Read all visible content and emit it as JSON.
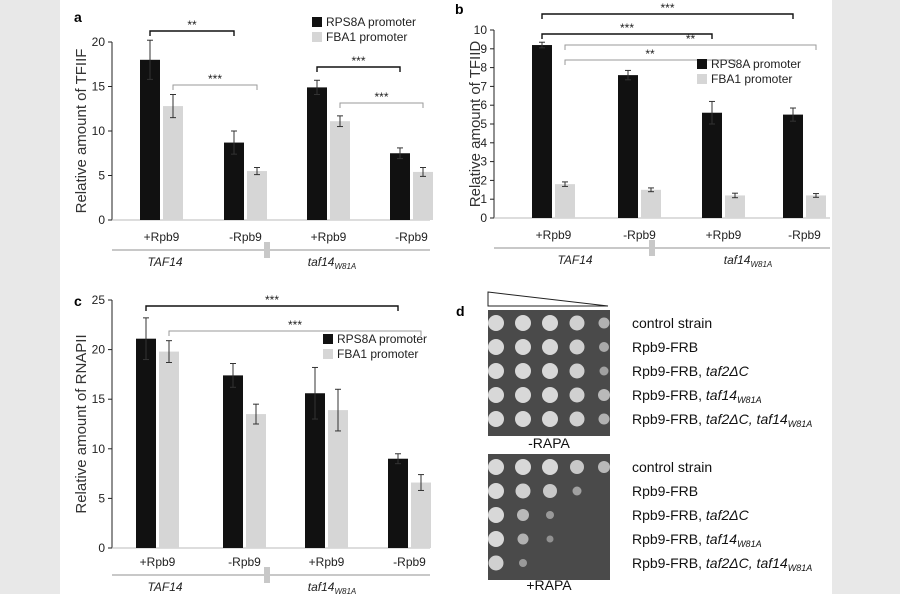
{
  "colors": {
    "rps8a": "#111111",
    "fba1": "#d6d6d6",
    "sig_black": "#111111",
    "sig_grey": "#9a9a9a",
    "group_bar": "#c8c8c8",
    "plate_bg": "#4a4a4a",
    "colony": "#d8d8d8"
  },
  "panel_a": {
    "letter": "a",
    "chart_data": {
      "type": "bar",
      "categories": [
        "+Rpb9",
        "-Rpb9",
        "+Rpb9",
        "-Rpb9"
      ],
      "groups": [
        {
          "label": "TAF14",
          "sub": ""
        },
        {
          "label": "taf14",
          "sub": "W81A"
        }
      ],
      "series": [
        {
          "name": "RPS8A promoter",
          "color": "#111111",
          "values": [
            18.0,
            8.7,
            14.9,
            7.5
          ],
          "errors": [
            2.2,
            1.3,
            0.8,
            0.6
          ]
        },
        {
          "name": "FBA1 promoter",
          "color": "#d6d6d6",
          "values": [
            12.8,
            5.5,
            11.1,
            5.4
          ],
          "errors": [
            1.3,
            0.4,
            0.6,
            0.5
          ]
        }
      ],
      "ylabel": "Relative amount of TFIIF",
      "ylim": [
        0,
        20
      ],
      "yticks": [
        0,
        5,
        10,
        15,
        20
      ],
      "significance": [
        {
          "from": 0,
          "to": 1,
          "series": 0,
          "label": "**",
          "color": "black"
        },
        {
          "from": 0,
          "to": 1,
          "series": 1,
          "label": "***",
          "color": "grey"
        },
        {
          "from": 2,
          "to": 3,
          "series": 0,
          "label": "***",
          "color": "black"
        },
        {
          "from": 2,
          "to": 3,
          "series": 1,
          "label": "***",
          "color": "grey"
        }
      ]
    }
  },
  "panel_b": {
    "letter": "b",
    "chart_data": {
      "type": "bar",
      "categories": [
        "+Rpb9",
        "-Rpb9",
        "+Rpb9",
        "-Rpb9"
      ],
      "groups": [
        {
          "label": "TAF14",
          "sub": ""
        },
        {
          "label": "taf14",
          "sub": "W81A"
        }
      ],
      "series": [
        {
          "name": "RPS8A promoter",
          "color": "#111111",
          "values": [
            9.2,
            7.6,
            5.6,
            5.5
          ],
          "errors": [
            0.15,
            0.25,
            0.6,
            0.35
          ]
        },
        {
          "name": "FBA1 promoter",
          "color": "#d6d6d6",
          "values": [
            1.8,
            1.5,
            1.2,
            1.2
          ],
          "errors": [
            0.12,
            0.1,
            0.12,
            0.1
          ]
        }
      ],
      "ylabel": "Relative amount of TFIID",
      "ylim": [
        0,
        10
      ],
      "yticks": [
        0,
        1,
        2,
        3,
        4,
        5,
        6,
        7,
        8,
        9,
        10
      ],
      "significance": [
        {
          "from": 0,
          "to": 3,
          "series": 0,
          "label": "***",
          "color": "black"
        },
        {
          "from": 0,
          "to": 2,
          "series": 0,
          "label": "***",
          "color": "black"
        },
        {
          "from": 0,
          "to": 3,
          "series": 1,
          "label": "**",
          "color": "grey"
        },
        {
          "from": 0,
          "to": 2,
          "series": 1,
          "label": "**",
          "color": "grey"
        }
      ]
    }
  },
  "panel_c": {
    "letter": "c",
    "chart_data": {
      "type": "bar",
      "categories": [
        "+Rpb9",
        "-Rpb9",
        "+Rpb9",
        "-Rpb9"
      ],
      "groups": [
        {
          "label": "TAF14",
          "sub": ""
        },
        {
          "label": "taf14",
          "sub": "W81A"
        }
      ],
      "series": [
        {
          "name": "RPS8A promoter",
          "color": "#111111",
          "values": [
            21.1,
            17.4,
            15.6,
            9.0
          ],
          "errors": [
            2.1,
            1.2,
            2.6,
            0.5
          ]
        },
        {
          "name": "FBA1 promoter",
          "color": "#d6d6d6",
          "values": [
            19.8,
            13.5,
            13.9,
            6.6
          ],
          "errors": [
            1.1,
            1.0,
            2.1,
            0.8
          ]
        }
      ],
      "ylabel": "Relative amount of RNAPII",
      "ylim": [
        0,
        25
      ],
      "yticks": [
        0,
        5,
        10,
        15,
        20,
        25
      ],
      "significance": [
        {
          "from": 0,
          "to": 3,
          "series": 0,
          "label": "***",
          "color": "black"
        },
        {
          "from": 0,
          "to": 3,
          "series": 1,
          "label": "***",
          "color": "grey"
        }
      ]
    }
  },
  "panel_d": {
    "letter": "d",
    "conditions": [
      "-RAPA",
      "+RAPA"
    ],
    "strains": [
      {
        "text": "control strain",
        "italic": "",
        "sub": ""
      },
      {
        "text": "Rpb9-FRB",
        "italic": "",
        "sub": ""
      },
      {
        "text": "Rpb9-FRB, ",
        "italic": "taf2ΔC",
        "sub": ""
      },
      {
        "text": "Rpb9-FRB, ",
        "italic": "taf14",
        "sub": "W81A"
      },
      {
        "text": "Rpb9-FRB, ",
        "italic": "taf2ΔC, taf14",
        "sub": "W81A"
      }
    ],
    "growth_minus": [
      [
        1,
        1,
        1,
        0.9,
        0.5
      ],
      [
        1,
        1,
        1,
        0.9,
        0.4
      ],
      [
        1,
        1,
        1,
        0.9,
        0.3
      ],
      [
        1,
        1,
        1,
        0.9,
        0.6
      ],
      [
        1,
        1,
        1,
        0.9,
        0.5
      ]
    ],
    "growth_plus": [
      [
        1,
        1,
        1,
        0.8,
        0.6
      ],
      [
        1,
        0.9,
        0.8,
        0.3,
        0
      ],
      [
        1,
        0.6,
        0.2,
        0,
        0
      ],
      [
        1,
        0.5,
        0.1,
        0,
        0
      ],
      [
        0.9,
        0.2,
        0,
        0,
        0
      ]
    ]
  }
}
